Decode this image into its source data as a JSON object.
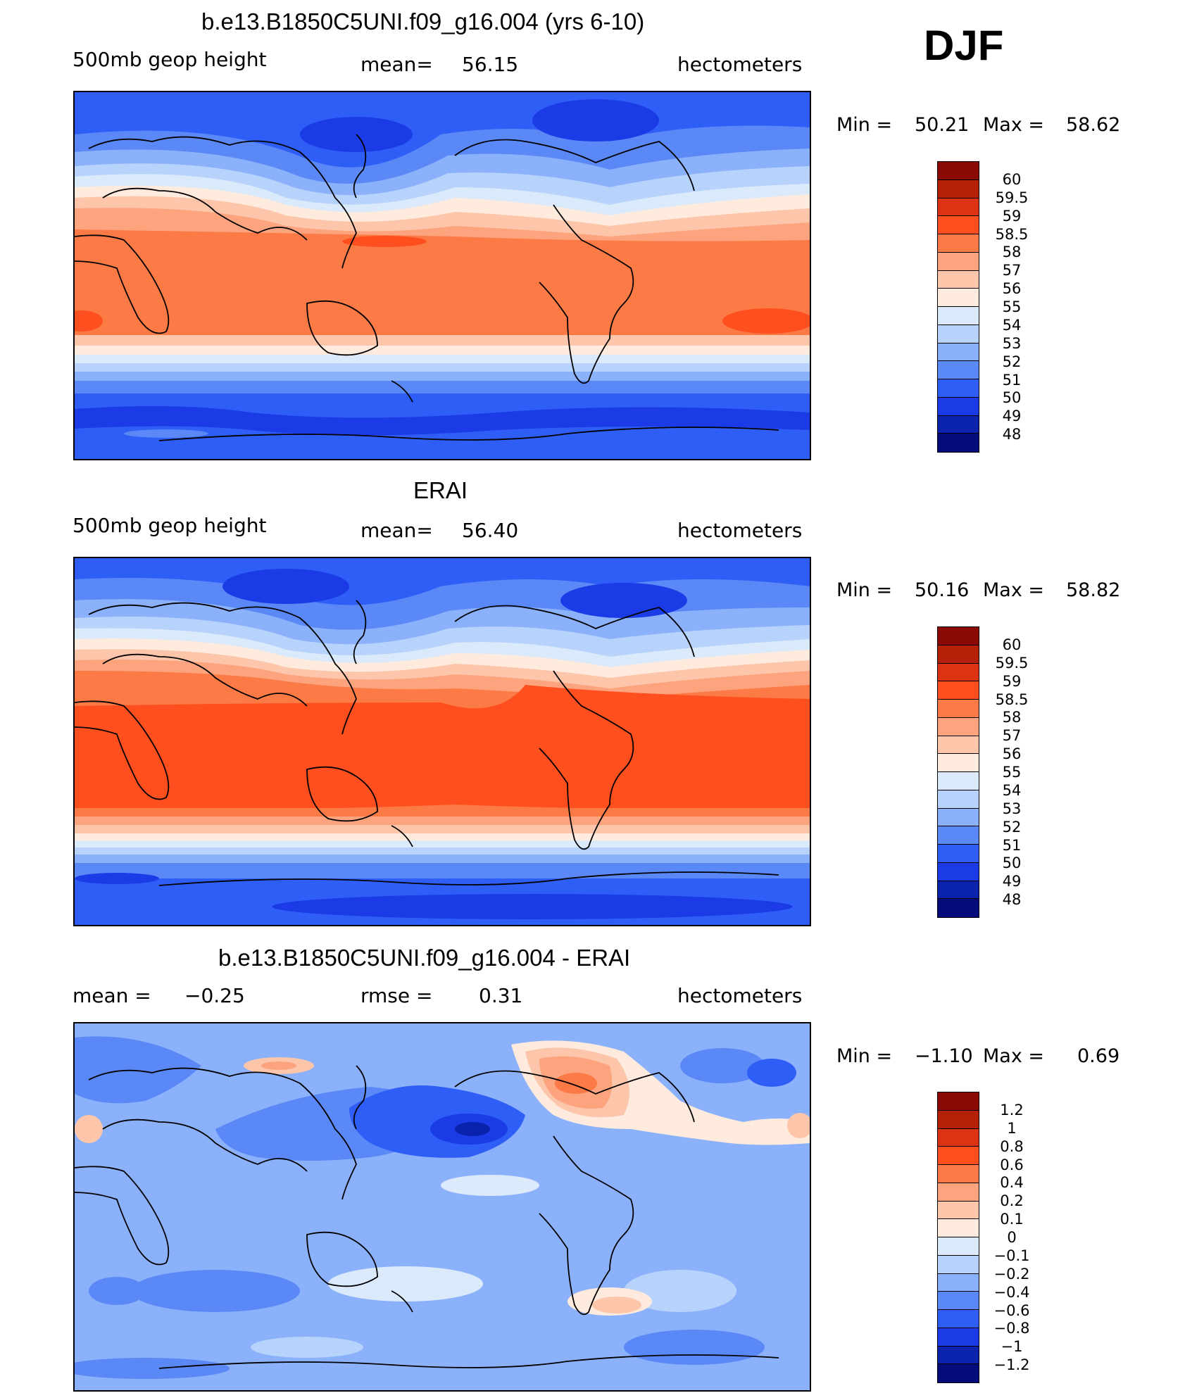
{
  "season": "DJF",
  "panels": [
    {
      "title": "b.e13.B1850C5UNI.f09_g16.004 (yrs 6-10)",
      "left_label": "500mb geop height",
      "center_label": "mean=",
      "center_value": "56.15",
      "right_label": "hectometers",
      "min_label": "Min =",
      "min_value": "50.21",
      "max_label": "Max =",
      "max_value": "58.62",
      "colorbar_labels": [
        "60",
        "59.5",
        "59",
        "58.5",
        "58",
        "57",
        "56",
        "55",
        "54",
        "53",
        "52",
        "51",
        "50",
        "49",
        "48"
      ]
    },
    {
      "title": "ERAI",
      "left_label": "500mb geop height",
      "center_label": "mean=",
      "center_value": "56.40",
      "right_label": "hectometers",
      "min_label": "Min =",
      "min_value": "50.16",
      "max_label": "Max =",
      "max_value": "58.82",
      "colorbar_labels": [
        "60",
        "59.5",
        "59",
        "58.5",
        "58",
        "57",
        "56",
        "55",
        "54",
        "53",
        "52",
        "51",
        "50",
        "49",
        "48"
      ]
    },
    {
      "title": "b.e13.B1850C5UNI.f09_g16.004 - ERAI",
      "left_label": "mean =",
      "left_value": "−0.25",
      "center_label": "rmse =",
      "center_value": "0.31",
      "right_label": "hectometers",
      "min_label": "Min =",
      "min_value": "−1.10",
      "max_label": "Max =",
      "max_value": "0.69",
      "colorbar_labels": [
        "1.2",
        "1",
        "0.8",
        "0.6",
        "0.4",
        "0.2",
        "0.1",
        "0",
        "−0.1",
        "−0.2",
        "−0.4",
        "−0.6",
        "−0.8",
        "−1",
        "−1.2"
      ]
    }
  ],
  "colorbar_colors": [
    "#8c0a05",
    "#b52009",
    "#dc3312",
    "#ff4f1f",
    "#fb7a46",
    "#fda47f",
    "#fdc6ab",
    "#ffebdd",
    "#dbeafb",
    "#b8d3fb",
    "#8cb1fb",
    "#5a88f6",
    "#2f5ef7",
    "#1b3be6",
    "#0b23ac",
    "#050b78"
  ]
}
